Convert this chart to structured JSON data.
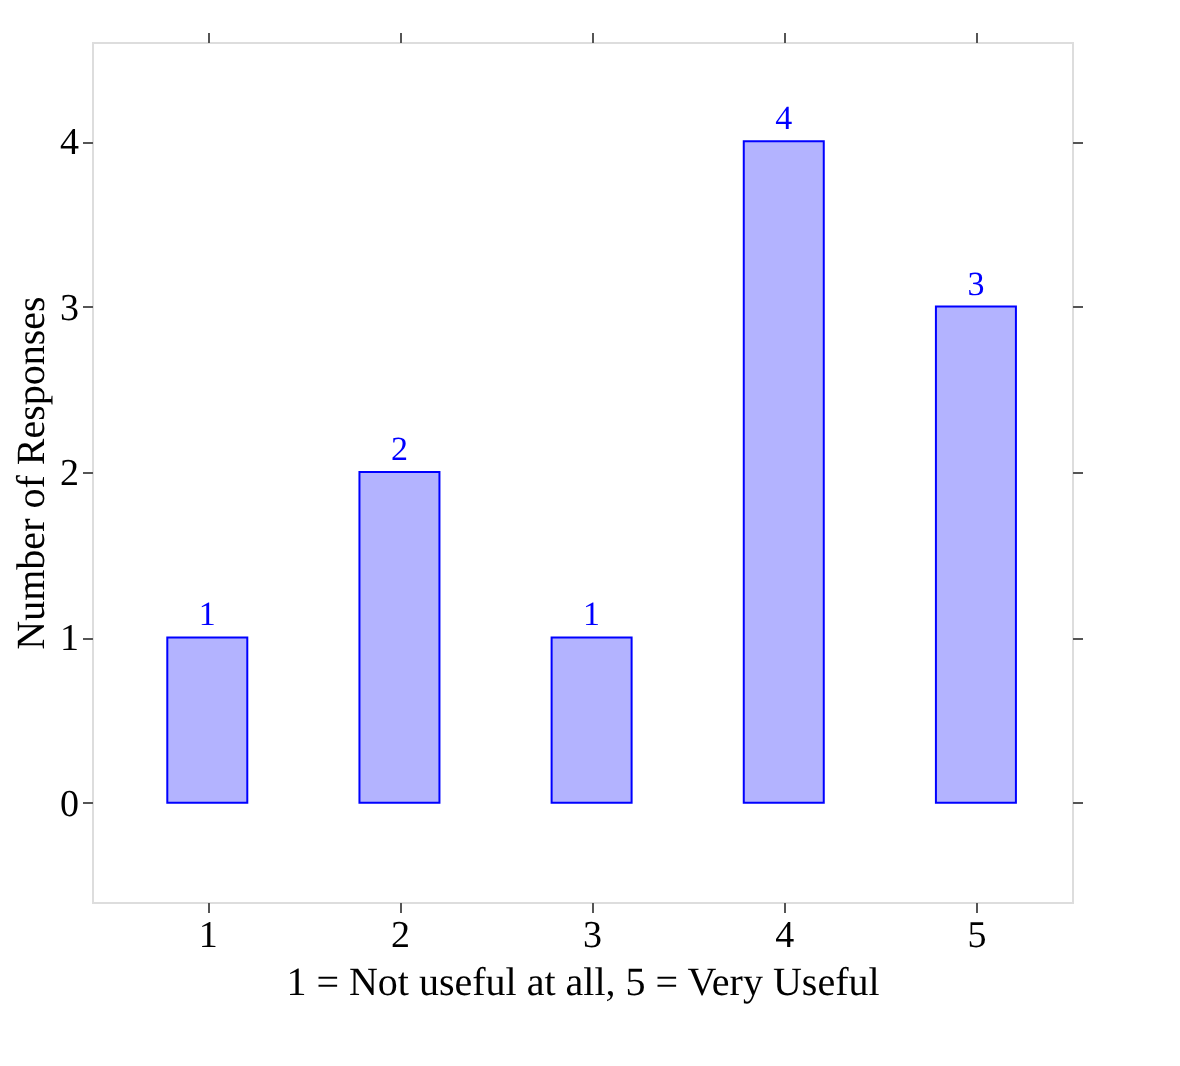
{
  "chart_data": {
    "type": "bar",
    "xlabel": "1 = Not useful at all, 5 = Very Useful",
    "ylabel": "Number of Responses",
    "x": [
      1,
      2,
      3,
      4,
      5
    ],
    "values": [
      1,
      2,
      1,
      4,
      3
    ],
    "color": "#b3b3ff",
    "xlim": [
      0.4,
      5.5
    ],
    "xticks": [
      1,
      2,
      3,
      4,
      5
    ],
    "ylim": [
      -0.6,
      4.6
    ],
    "yticks": [
      0,
      1,
      2,
      3,
      4
    ],
    "data_labels": true,
    "grid": false
  }
}
